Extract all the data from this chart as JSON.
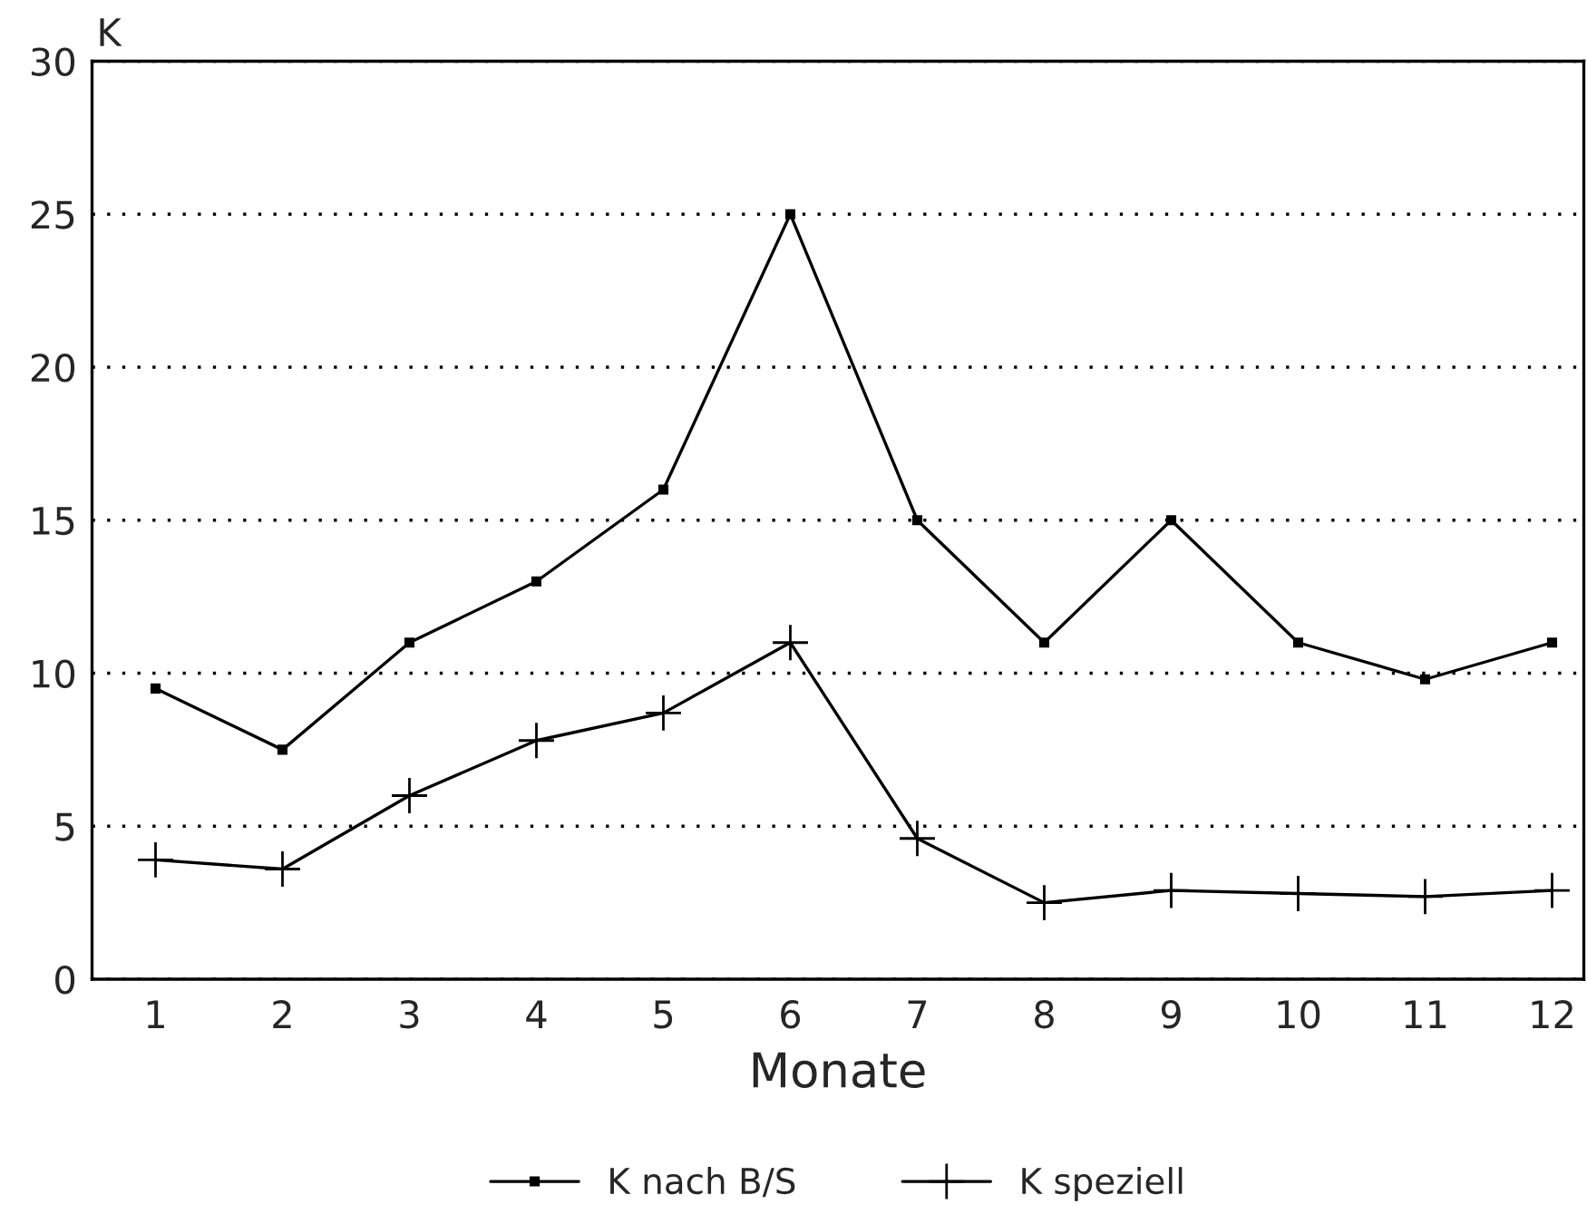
{
  "chart_data": {
    "type": "line",
    "ylabel": "K",
    "xlabel": "Monate",
    "categories": [
      "1",
      "2",
      "3",
      "4",
      "5",
      "6",
      "7",
      "8",
      "9",
      "10",
      "11",
      "12"
    ],
    "series": [
      {
        "name": "K nach B/S",
        "color": "#000000",
        "marker": "square",
        "values": [
          9.5,
          7.5,
          11,
          13,
          16,
          25,
          15,
          11,
          15,
          11,
          9.8,
          11
        ]
      },
      {
        "name": "K speziell",
        "color": "#000000",
        "marker": "cross",
        "values": [
          3.9,
          3.6,
          6,
          7.8,
          8.7,
          11,
          4.6,
          2.5,
          2.9,
          2.8,
          2.7,
          2.9
        ]
      }
    ],
    "ylim": [
      0,
      30
    ],
    "yticks": [
      0,
      5,
      10,
      15,
      20,
      25,
      30
    ],
    "grid": "y",
    "legend": "bottom",
    "line_style": "solid"
  }
}
